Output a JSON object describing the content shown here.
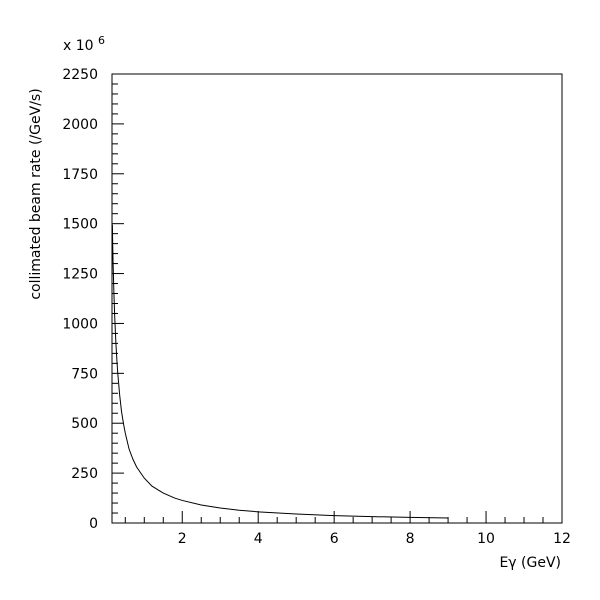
{
  "chart_data": {
    "type": "line",
    "title": "",
    "xlabel": "Eγ (GeV)",
    "ylabel": "collimated beam rate (/GeV/s)",
    "y_multiplier_label": "x 10",
    "y_multiplier_exponent": "6",
    "xlim": [
      0.15,
      12
    ],
    "ylim": [
      0,
      2250
    ],
    "x_ticks": [
      2,
      4,
      6,
      8,
      10,
      12
    ],
    "y_ticks": [
      0,
      250,
      500,
      750,
      1000,
      1250,
      1500,
      1750,
      2000,
      2250
    ],
    "grid": false,
    "legend": "none",
    "line_color": "#000000",
    "series": [
      {
        "x": [
          0.16,
          0.17,
          0.18,
          0.2,
          0.22,
          0.25,
          0.28,
          0.3,
          0.35,
          0.4,
          0.45,
          0.5,
          0.6,
          0.7,
          0.8,
          1.0,
          1.2,
          1.5,
          1.8,
          2.0,
          2.5,
          3.0,
          3.5,
          4.0,
          5.0,
          6.0,
          7.0,
          8.0,
          9.0
        ],
        "y": [
          1495,
          1380,
          1290,
          1155,
          1040,
          910,
          810,
          755,
          645,
          560,
          500,
          450,
          370,
          320,
          280,
          225,
          185,
          150,
          125,
          113,
          90,
          75,
          64,
          56,
          45,
          37,
          32,
          28,
          25
        ]
      }
    ]
  }
}
